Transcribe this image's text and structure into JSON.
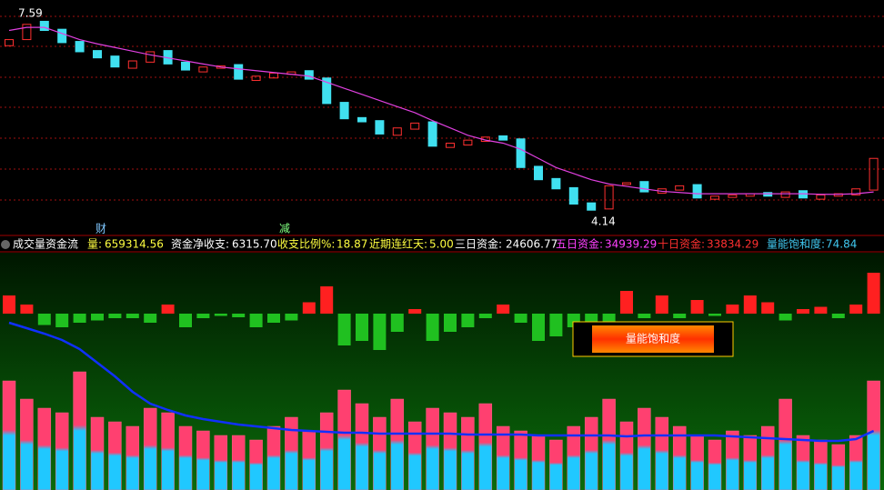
{
  "price_panel": {
    "type": "candlestick",
    "ylim": [
      3.95,
      7.8
    ],
    "open": [
      7.05,
      7.15,
      7.45,
      7.32,
      7.12,
      6.97,
      6.88,
      6.68,
      6.78,
      6.97,
      6.78,
      6.62,
      6.68,
      6.74,
      6.48,
      6.52,
      6.58,
      6.64,
      6.52,
      6.12,
      5.87,
      5.82,
      5.58,
      5.68,
      5.8,
      5.38,
      5.42,
      5.48,
      5.57,
      5.52,
      5.07,
      4.87,
      4.72,
      4.47,
      4.37,
      4.77,
      4.82,
      4.63,
      4.68,
      4.77,
      4.53,
      4.56,
      4.58,
      4.64,
      4.56,
      4.67,
      4.53,
      4.58,
      4.6,
      4.68
    ],
    "close": [
      7.15,
      7.4,
      7.3,
      7.1,
      6.95,
      6.85,
      6.7,
      6.8,
      6.95,
      6.75,
      6.65,
      6.7,
      6.72,
      6.5,
      6.55,
      6.6,
      6.62,
      6.5,
      6.1,
      5.85,
      5.8,
      5.6,
      5.7,
      5.78,
      5.4,
      5.45,
      5.5,
      5.55,
      5.5,
      5.05,
      4.85,
      4.7,
      4.45,
      4.35,
      4.75,
      4.8,
      4.65,
      4.7,
      4.75,
      4.55,
      4.58,
      4.6,
      4.62,
      4.58,
      4.65,
      4.55,
      4.6,
      4.62,
      4.7,
      5.2
    ],
    "ma": [
      7.3,
      7.35,
      7.35,
      7.25,
      7.15,
      7.08,
      7.02,
      6.96,
      6.9,
      6.85,
      6.8,
      6.75,
      6.7,
      6.67,
      6.64,
      6.61,
      6.58,
      6.55,
      6.45,
      6.35,
      6.25,
      6.15,
      6.05,
      5.95,
      5.82,
      5.7,
      5.58,
      5.5,
      5.45,
      5.35,
      5.2,
      5.05,
      4.95,
      4.85,
      4.78,
      4.74,
      4.7,
      4.66,
      4.64,
      4.62,
      4.62,
      4.62,
      4.62,
      4.62,
      4.62,
      4.62,
      4.61,
      4.61,
      4.62,
      4.65
    ],
    "ma_color": "#e040e0",
    "up_color": "#ff3030",
    "down_color": "#40e0f0",
    "high_label": "7.59",
    "low_label": "4.14",
    "markers": [
      "财",
      "减"
    ]
  },
  "info_bar": {
    "title": "成交量资金流",
    "items": [
      {
        "label": "量:",
        "value": "659314.56",
        "color": "#ffff40"
      },
      {
        "label": "资金净收支:",
        "value": "6315.70",
        "color": "#ffffff"
      },
      {
        "label": "收支比例%:",
        "value": "18.87",
        "color": "#ffff40"
      },
      {
        "label": "近期连红天:",
        "value": "5.00",
        "color": "#ffff40"
      },
      {
        "label": "三日资金:",
        "value": "24606.77",
        "color": "#ffffff"
      },
      {
        "label": "五日资金:",
        "value": "34939.29",
        "color": "#ff40ff"
      },
      {
        "label": "十日资金:",
        "value": "33834.29",
        "color": "#ff3030"
      },
      {
        "label": "量能饱和度:",
        "value": "74.84",
        "color": "#40c8f0"
      }
    ]
  },
  "flow_panel": {
    "type": "bar",
    "ylim": [
      -110,
      110
    ],
    "pos_color": "#ff2020",
    "neg_color": "#20c020",
    "values": [
      40,
      20,
      -25,
      -30,
      -20,
      -15,
      -10,
      -10,
      -20,
      20,
      -30,
      -10,
      -5,
      -8,
      -30,
      -20,
      -15,
      25,
      60,
      -70,
      -60,
      -80,
      -40,
      10,
      -60,
      -40,
      -30,
      -10,
      20,
      -20,
      -60,
      -50,
      -30,
      -20,
      -25,
      50,
      -10,
      40,
      -10,
      30,
      -5,
      20,
      40,
      25,
      -15,
      10,
      15,
      -10,
      20,
      90
    ]
  },
  "volume_panel": {
    "type": "bar",
    "ylim": [
      0,
      200
    ],
    "ma_color": "#1030ff",
    "values": [
      120,
      100,
      90,
      85,
      130,
      80,
      75,
      70,
      90,
      85,
      70,
      65,
      60,
      60,
      55,
      70,
      80,
      65,
      85,
      110,
      95,
      80,
      100,
      75,
      90,
      85,
      80,
      95,
      70,
      65,
      60,
      55,
      70,
      80,
      100,
      75,
      90,
      80,
      70,
      60,
      55,
      65,
      60,
      70,
      100,
      60,
      55,
      50,
      60,
      120
    ],
    "ma": [
      184,
      178,
      172,
      165,
      155,
      140,
      125,
      108,
      95,
      88,
      82,
      78,
      75,
      72,
      70,
      68,
      66,
      65,
      64,
      63,
      63,
      62,
      62,
      62,
      62,
      62,
      61,
      61,
      61,
      61,
      60,
      60,
      60,
      60,
      60,
      59,
      60,
      60,
      60,
      60,
      60,
      59,
      58,
      57,
      56,
      55,
      54,
      54,
      56,
      65
    ]
  },
  "legend_box": "量能饱和度"
}
